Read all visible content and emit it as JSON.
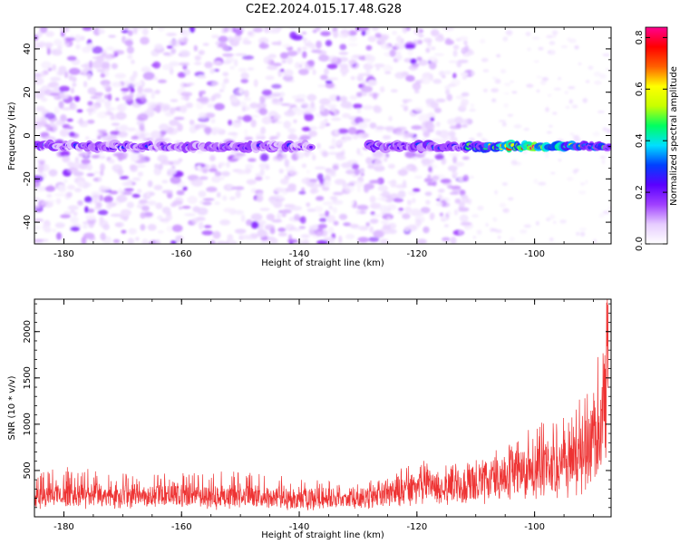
{
  "title": "C2E2.2024.015.17.48.G28",
  "chart_data": [
    {
      "type": "heatmap",
      "xlabel": "Height of straight line (km)",
      "ylabel": "Frequency (Hz)",
      "xlim": [
        -185,
        -87
      ],
      "ylim": [
        -50,
        50
      ],
      "x_ticks": [
        -180,
        -160,
        -140,
        -120,
        -100
      ],
      "y_ticks": [
        -40,
        -20,
        0,
        20,
        40
      ],
      "colorbar": {
        "label": "Normalized spectral amplitude",
        "range": [
          0,
          0.84
        ],
        "ticks": [
          0.0,
          0.2,
          0.4,
          0.6,
          0.8
        ],
        "colormap": "rainbow (violet-blue-cyan-green-yellow-red-magenta)",
        "colors": [
          "#ffffff",
          "#e6ccff",
          "#a040ff",
          "#5a00ff",
          "#0040ff",
          "#00e0ff",
          "#00ff60",
          "#c8ff00",
          "#ffff00",
          "#ff6000",
          "#ff0000",
          "#ff0090"
        ]
      },
      "signal_band": {
        "frequency_hz": -5,
        "segments": [
          {
            "x": [
              -185,
              -138
            ],
            "amplitude": 0.3
          },
          {
            "x": [
              -128,
              -112
            ],
            "amplitude": 0.35
          },
          {
            "x": [
              -112,
              -87
            ],
            "amplitude": 0.7
          }
        ],
        "peak_amplitude_x": -100
      },
      "noise_extent_x": [
        -185,
        -111
      ],
      "grid": false
    },
    {
      "type": "line",
      "xlabel": "Height of straight line (km)",
      "ylabel": "SNR (10 * v/v)",
      "xlim": [
        -185,
        -87
      ],
      "ylim": [
        0,
        2350
      ],
      "x_ticks": [
        -180,
        -160,
        -140,
        -120,
        -100
      ],
      "y_ticks": [
        500,
        1000,
        1500,
        2000
      ],
      "series_color": "#ee3333",
      "envelope": [
        {
          "x": -185,
          "baseline": 170,
          "max": 450
        },
        {
          "x": -180,
          "baseline": 200,
          "max": 560
        },
        {
          "x": -170,
          "baseline": 190,
          "max": 470
        },
        {
          "x": -160,
          "baseline": 190,
          "max": 470
        },
        {
          "x": -150,
          "baseline": 210,
          "max": 510
        },
        {
          "x": -140,
          "baseline": 170,
          "max": 410
        },
        {
          "x": -130,
          "baseline": 170,
          "max": 380
        },
        {
          "x": -125,
          "baseline": 230,
          "max": 430
        },
        {
          "x": -120,
          "baseline": 280,
          "max": 630
        },
        {
          "x": -115,
          "baseline": 300,
          "max": 560
        },
        {
          "x": -110,
          "baseline": 330,
          "max": 610
        },
        {
          "x": -105,
          "baseline": 400,
          "max": 800
        },
        {
          "x": -100,
          "baseline": 500,
          "max": 1080
        },
        {
          "x": -95,
          "baseline": 480,
          "max": 1080
        },
        {
          "x": -92,
          "baseline": 600,
          "max": 1330
        },
        {
          "x": -89,
          "baseline": 700,
          "max": 2150
        },
        {
          "x": -87.5,
          "baseline": 1600,
          "max": 2350
        }
      ],
      "grid": false
    }
  ]
}
